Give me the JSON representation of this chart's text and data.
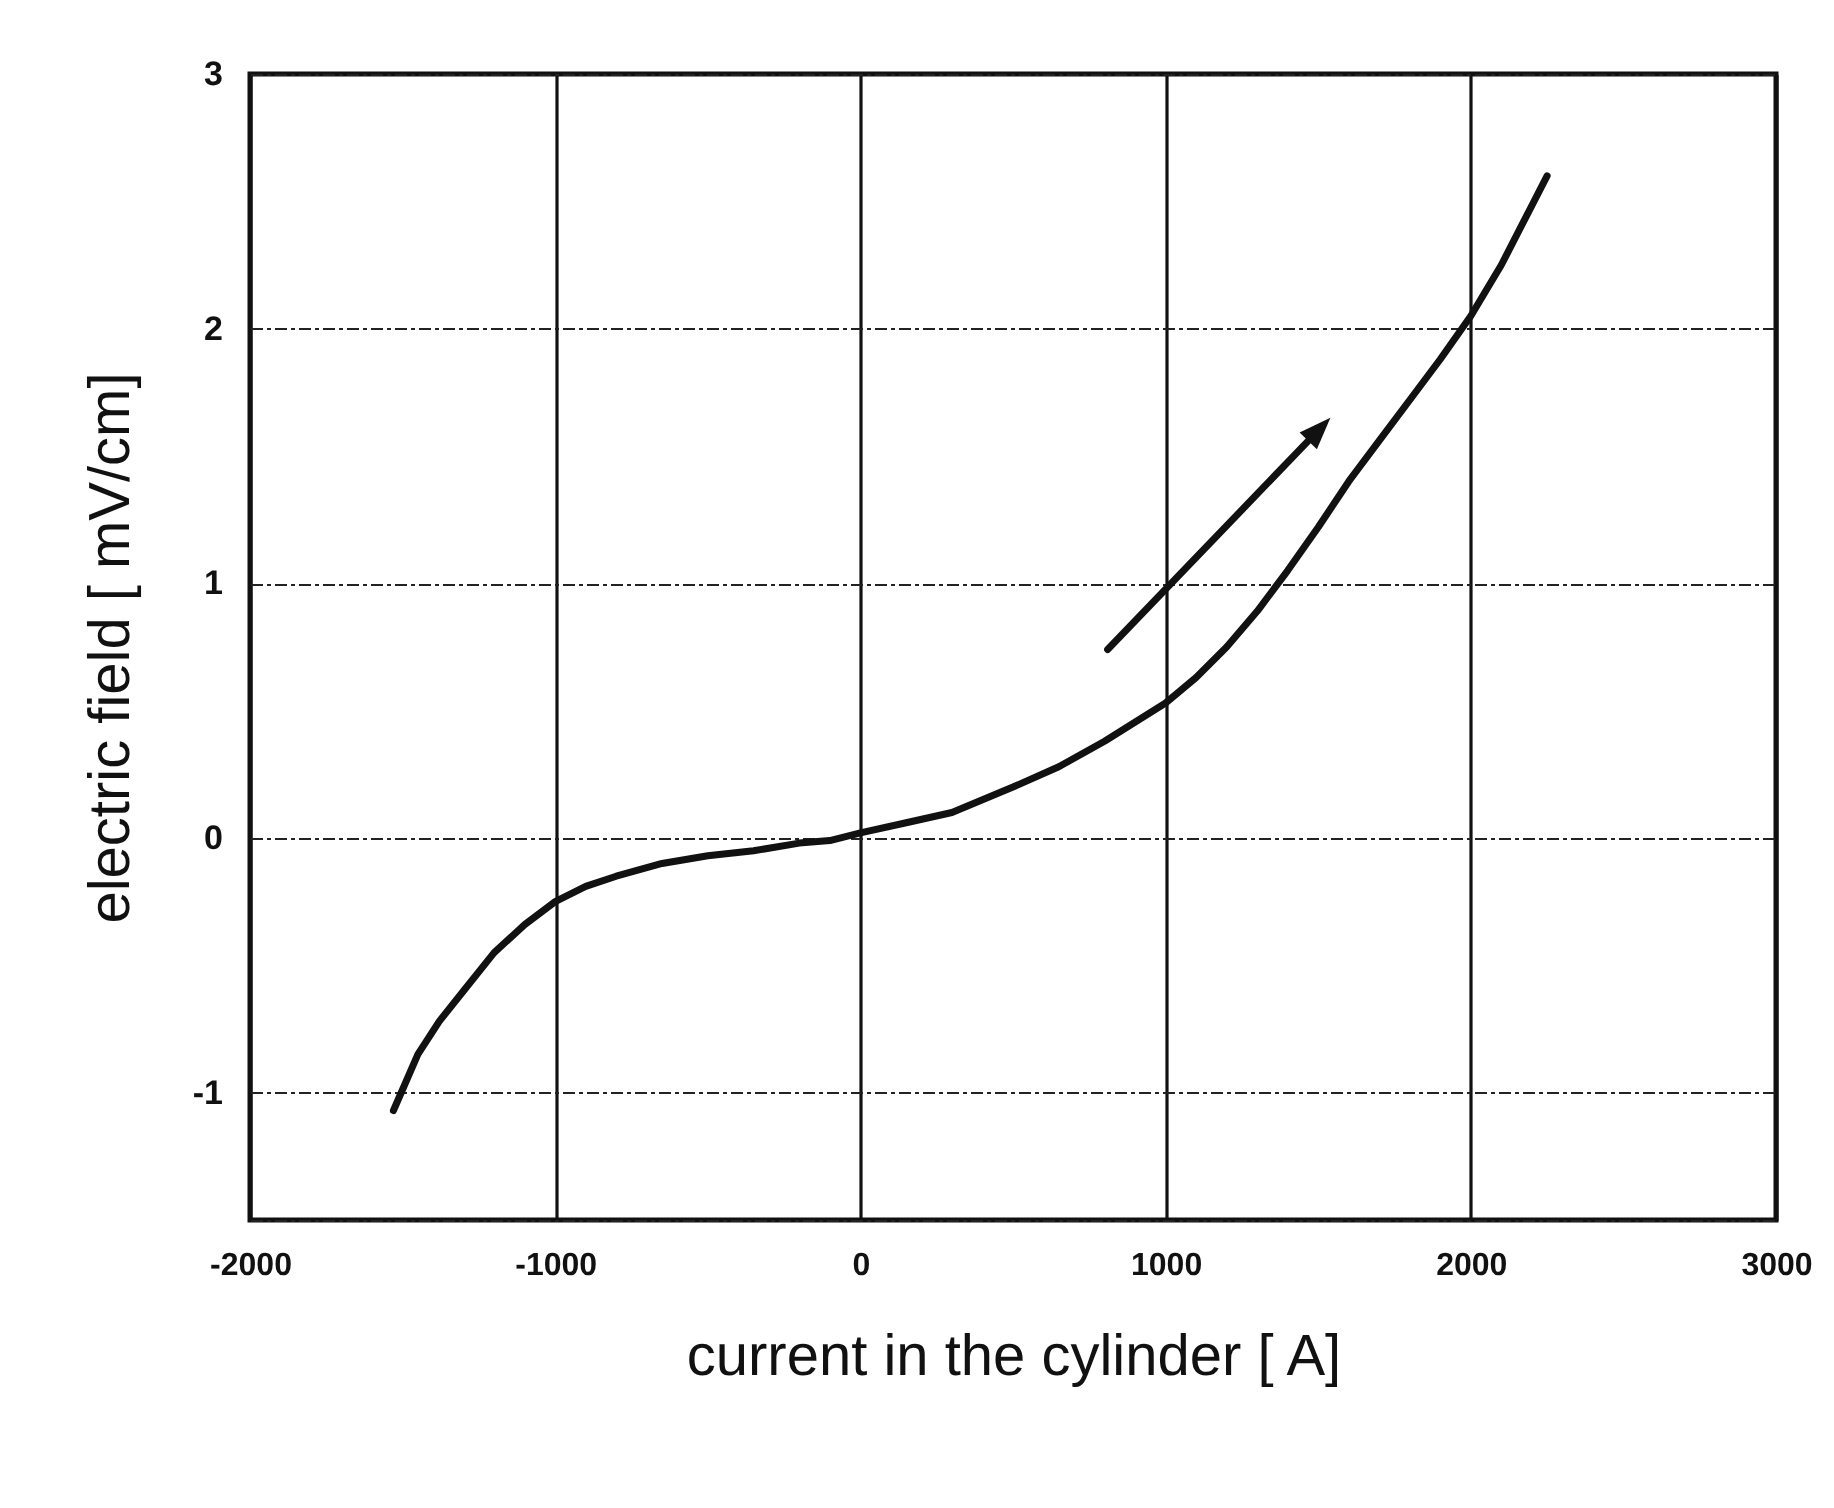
{
  "chart_data": {
    "type": "line",
    "xlabel": "current in the cylinder [ A]",
    "ylabel": "electric field [ mV/cm]",
    "xlim": [
      -2000,
      3000
    ],
    "xticks": [
      -2000,
      -1000,
      0,
      1000,
      2000,
      3000
    ],
    "ylim": [
      -1.5,
      3
    ],
    "yticks": [
      {
        "value": -1.5,
        "label": null
      },
      -1,
      0,
      1,
      2,
      3
    ],
    "grid": true,
    "marker": "none",
    "line_style": "solid",
    "series": [
      {
        "color": "#111111",
        "x": [
          -1530,
          -1450,
          -1380,
          -1300,
          -1200,
          -1100,
          -1000,
          -900,
          -800,
          -650,
          -500,
          -350,
          -200,
          -100,
          0,
          150,
          300,
          500,
          650,
          800,
          1000,
          1100,
          1200,
          1300,
          1400,
          1500,
          1600,
          1700,
          1800,
          1900,
          2000,
          2100,
          2250
        ],
        "values": [
          -1.07,
          -0.85,
          -0.72,
          -0.6,
          -0.45,
          -0.34,
          -0.25,
          -0.19,
          -0.15,
          -0.1,
          -0.07,
          -0.05,
          -0.02,
          -0.01,
          0.02,
          0.06,
          0.1,
          0.2,
          0.28,
          0.38,
          0.53,
          0.63,
          0.75,
          0.89,
          1.05,
          1.22,
          1.4,
          1.56,
          1.72,
          1.88,
          2.05,
          2.25,
          2.6
        ]
      }
    ]
  }
}
